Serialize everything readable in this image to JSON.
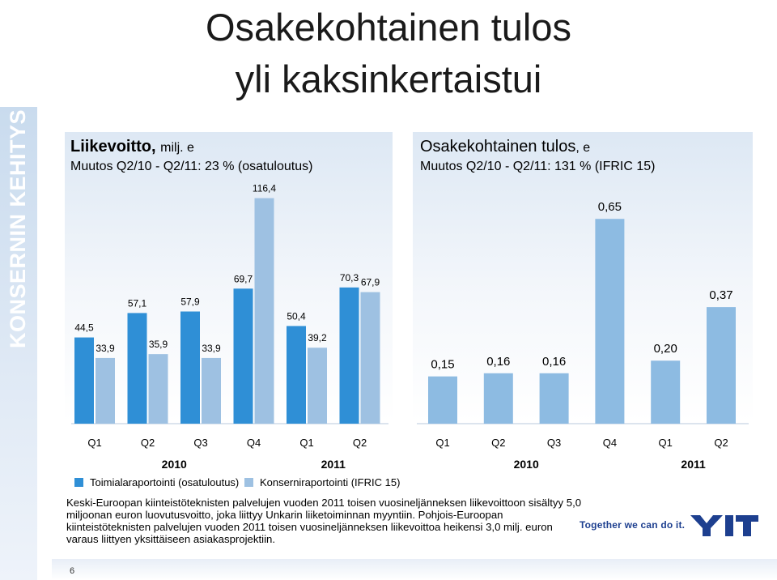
{
  "sidebar": {
    "label": "KONSERNIN KEHITYS"
  },
  "title": {
    "line1": "Osakekohtainen tulos",
    "line2": "yli kaksinkertaistui"
  },
  "colors": {
    "dark_blue": "#2f8fd6",
    "light_blue": "#9ec1e2",
    "right_blue": "#8dbbe2",
    "brand": "#1d3f8f"
  },
  "left_chart": {
    "title_bold": "Liikevoitto,",
    "title_unit": "milj. e",
    "subtitle": "Muutos Q2/10 - Q2/11: 23 % (osatuloutus)",
    "legend": [
      "Toimialaraportointi (osatuloutus)",
      "Konserniraportointi (IFRIC 15)"
    ],
    "years": [
      "2010",
      "2011"
    ]
  },
  "right_chart": {
    "title_main": "Osakekohtainen tulos",
    "title_unit": ", e",
    "subtitle": "Muutos Q2/10 - Q2/11: 131 % (IFRIC 15)",
    "years": [
      "2010",
      "2011"
    ]
  },
  "chart_data": [
    {
      "type": "bar",
      "title": "Liikevoitto, milj. e",
      "categories": [
        "Q1",
        "Q2",
        "Q3",
        "Q4",
        "Q1",
        "Q2"
      ],
      "series": [
        {
          "name": "Toimialaraportointi (osatuloutus)",
          "values": [
            44.5,
            57.1,
            57.9,
            69.7,
            50.4,
            70.3
          ],
          "labels": [
            "44,5",
            "57,1",
            "57,9",
            "69,7",
            "50,4",
            "70,3"
          ]
        },
        {
          "name": "Konserniraportointi (IFRIC 15)",
          "values": [
            33.9,
            35.9,
            33.9,
            116.4,
            39.2,
            67.9
          ],
          "labels": [
            "33,9",
            "35,9",
            "33,9",
            "116,4",
            "39,2",
            "67,9"
          ]
        }
      ],
      "ylim": [
        0,
        120
      ]
    },
    {
      "type": "bar",
      "title": "Osakekohtainen tulos, e",
      "categories": [
        "Q1",
        "Q2",
        "Q3",
        "Q4",
        "Q1",
        "Q2"
      ],
      "series": [
        {
          "values": [
            0.15,
            0.16,
            0.16,
            0.65,
            0.2,
            0.37
          ],
          "labels": [
            "0,15",
            "0,16",
            "0,16",
            "0,65",
            "0,20",
            "0,37"
          ]
        }
      ],
      "ylim": [
        0,
        0.72
      ]
    }
  ],
  "footnote": "Keski-Euroopan kiinteistöteknisten palvelujen vuoden 2011 toisen vuosineljänneksen liikevoittoon sisältyy 5,0 miljoonan euron luovutusvoitto, joka liittyy Unkarin liiketoiminnan myyntiin. Pohjois-Euroopan kiinteistöteknisten palvelujen vuoden 2011 toisen vuosineljänneksen liikevoittoa heikensi 3,0 milj. euron varaus liittyen yksittäiseen asiakasprojektiin.",
  "slogan": "Together we can do it.",
  "logo_text": "YIT",
  "page_number": "6"
}
